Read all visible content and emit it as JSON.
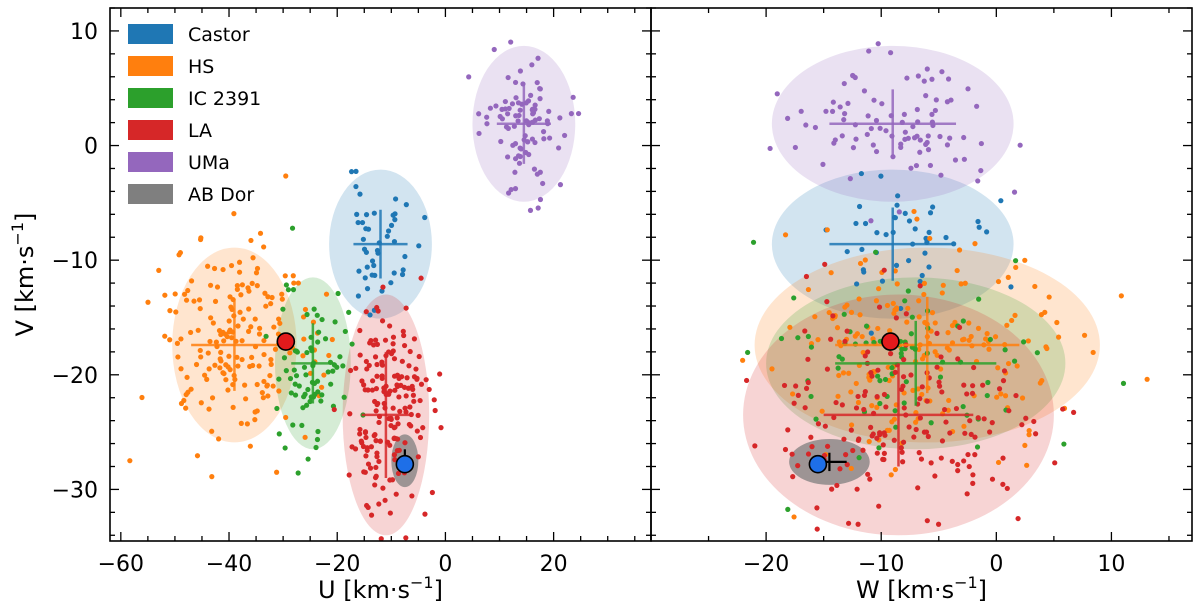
{
  "chart_data": [
    {
      "type": "scatter",
      "panel": "left",
      "xlabel": "U [km·s",
      "xlabel_sup": "−1",
      "xlabel_end": "]",
      "ylabel": "V [km·s",
      "ylabel_sup": "−1",
      "ylabel_end": "]",
      "xlim": [
        -62,
        38
      ],
      "ylim": [
        -34.5,
        12
      ],
      "xticks": [
        -60,
        -40,
        -20,
        0,
        20
      ],
      "xtick_labels": [
        "−60",
        "−40",
        "−20",
        "0",
        "20"
      ],
      "yticks": [
        10,
        0,
        -10,
        -20,
        -30
      ],
      "ytick_labels": [
        "10",
        "0",
        "−10",
        "−20",
        "−30"
      ],
      "legend": {
        "position": "top-left",
        "entries": [
          {
            "label": "Castor",
            "color": "#1f77b4"
          },
          {
            "label": "HS",
            "color": "#ff7f0e"
          },
          {
            "label": "IC 2391",
            "color": "#2ca02c"
          },
          {
            "label": "LA",
            "color": "#d62728"
          },
          {
            "label": "UMa",
            "color": "#9467bd"
          },
          {
            "label": "AB Dor",
            "color": "#7f7f7f"
          }
        ]
      },
      "groups": [
        {
          "name": "Castor",
          "color": "#1f77b4",
          "center": [
            -12,
            -8.6
          ],
          "radii": [
            9.5,
            6.5
          ],
          "err_x": 5,
          "err_y": 3,
          "n_points": 45,
          "spread": [
            3.5,
            2.8
          ],
          "seed": 11
        },
        {
          "name": "HS",
          "color": "#ff7f0e",
          "center": [
            -39,
            -17.4
          ],
          "radii": [
            11.5,
            8.5
          ],
          "err_x": 8,
          "err_y": 4,
          "n_points": 190,
          "spread": [
            7.5,
            4.5
          ],
          "seed": 23
        },
        {
          "name": "IC 2391",
          "color": "#2ca02c",
          "center": [
            -24.5,
            -19
          ],
          "radii": [
            7,
            7.5
          ],
          "err_x": 4,
          "err_y": 3.5,
          "n_points": 75,
          "spread": [
            3.2,
            3.8
          ],
          "seed": 37
        },
        {
          "name": "LA",
          "color": "#d62728",
          "center": [
            -11,
            -23.5
          ],
          "radii": [
            8,
            10.5
          ],
          "err_x": 4.5,
          "err_y": 5.5,
          "n_points": 180,
          "spread": [
            3.5,
            4.5
          ],
          "seed": 51
        },
        {
          "name": "UMa",
          "color": "#9467bd",
          "center": [
            14.5,
            1.9
          ],
          "radii": [
            9.5,
            6.8
          ],
          "err_x": 5,
          "err_y": 3.5,
          "n_points": 95,
          "spread": [
            3.8,
            2.8
          ],
          "seed": 67
        },
        {
          "name": "AB Dor",
          "color": "#7f7f7f",
          "center": [
            -7.5,
            -27.5
          ],
          "radii": [
            2.5,
            2.3
          ],
          "err_x": 0.5,
          "err_y": 1,
          "n_points": 0,
          "spread": [
            0,
            0
          ],
          "seed": 3
        }
      ],
      "markers": [
        {
          "x": -29.5,
          "y": -17.1,
          "color": "#e31a1c"
        },
        {
          "x": -7.5,
          "y": -27.8,
          "color": "#1e6fe8"
        }
      ]
    },
    {
      "type": "scatter",
      "panel": "right",
      "xlabel": "W [km·s",
      "xlabel_sup": "−1",
      "xlabel_end": "]",
      "xlim": [
        -30,
        17
      ],
      "ylim": [
        -34.5,
        12
      ],
      "xticks": [
        -20,
        -10,
        0,
        10
      ],
      "xtick_labels": [
        "−20",
        "−10",
        "0",
        "10"
      ],
      "yticks": [
        10,
        0,
        -10,
        -20,
        -30
      ],
      "groups": [
        {
          "name": "Castor",
          "color": "#1f77b4",
          "center": [
            -9,
            -8.6
          ],
          "radii": [
            10.5,
            6.5
          ],
          "err_x": 5.5,
          "err_y": 3.2,
          "n_points": 45,
          "spread": [
            4,
            2.8
          ],
          "seed": 13
        },
        {
          "name": "HS",
          "color": "#ff7f0e",
          "center": [
            -6,
            -17.4
          ],
          "radii": [
            15,
            8.5
          ],
          "err_x": 8,
          "err_y": 4.2,
          "n_points": 190,
          "spread": [
            6.5,
            4.5
          ],
          "seed": 29
        },
        {
          "name": "IC 2391",
          "color": "#2ca02c",
          "center": [
            -7,
            -19
          ],
          "radii": [
            13,
            7.5
          ],
          "err_x": 7,
          "err_y": 3.7,
          "n_points": 75,
          "spread": [
            5.5,
            3.8
          ],
          "seed": 41
        },
        {
          "name": "LA",
          "color": "#d62728",
          "center": [
            -8.5,
            -23.5
          ],
          "radii": [
            13.5,
            10.5
          ],
          "err_x": 6.5,
          "err_y": 4.5,
          "n_points": 180,
          "spread": [
            6,
            4.5
          ],
          "seed": 59
        },
        {
          "name": "UMa",
          "color": "#9467bd",
          "center": [
            -9,
            1.9
          ],
          "radii": [
            10.5,
            6.8
          ],
          "err_x": 5.5,
          "err_y": 3,
          "n_points": 95,
          "spread": [
            4.8,
            2.8
          ],
          "seed": 71
        },
        {
          "name": "AB Dor",
          "color": "#7f7f7f",
          "center": [
            -14.5,
            -27.6
          ],
          "radii": [
            3.5,
            2
          ],
          "err_x": 1.5,
          "err_y": 0.8,
          "n_points": 0,
          "spread": [
            0,
            0
          ],
          "seed": 5
        }
      ],
      "markers": [
        {
          "x": -9.2,
          "y": -17.1,
          "color": "#e31a1c"
        },
        {
          "x": -15.5,
          "y": -27.8,
          "color": "#1e6fe8"
        }
      ]
    }
  ]
}
